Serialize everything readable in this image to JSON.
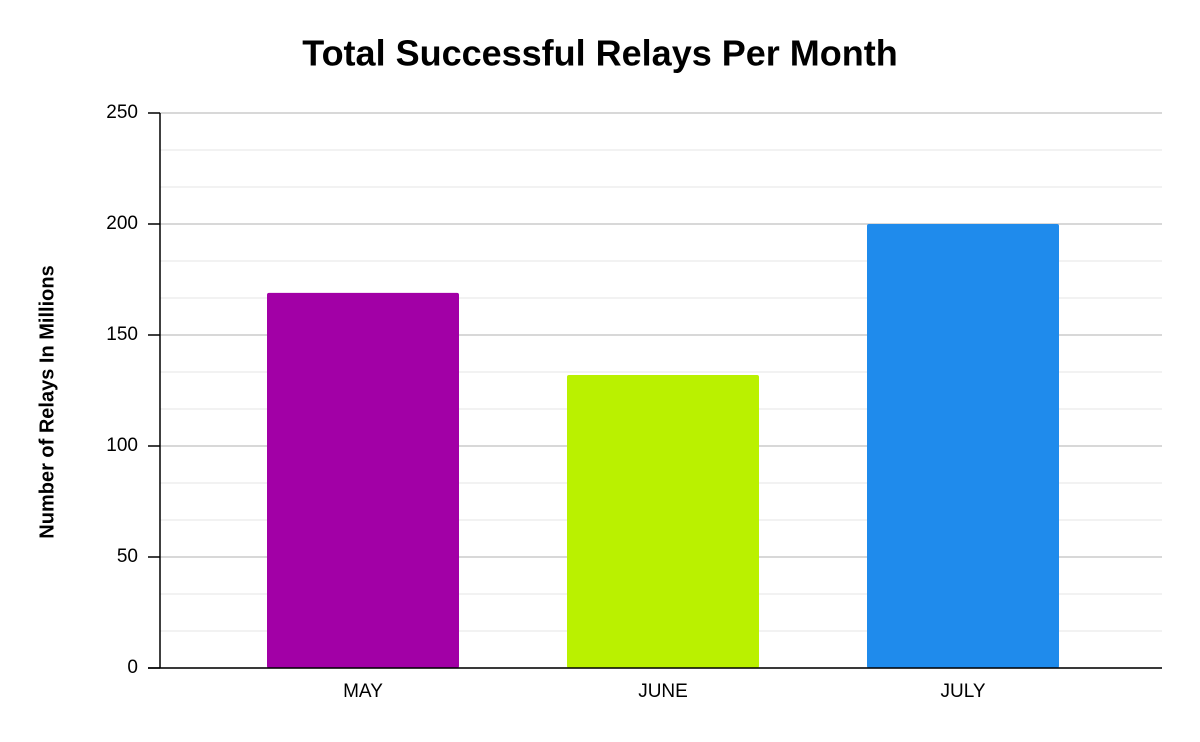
{
  "chart_data": {
    "type": "bar",
    "title": "Total Successful Relays Per Month",
    "y_label": "Number of Relays In Millions",
    "categories": [
      "MAY",
      "JUNE",
      "JULY"
    ],
    "values": [
      169,
      132,
      200
    ],
    "colors": [
      "#a200a6",
      "#baf100",
      "#1f8bec"
    ],
    "ylim": [
      0,
      250
    ],
    "yticks": [
      0,
      50,
      100,
      150,
      200,
      250
    ],
    "grid": true,
    "minor_grid_divisions": 3
  }
}
